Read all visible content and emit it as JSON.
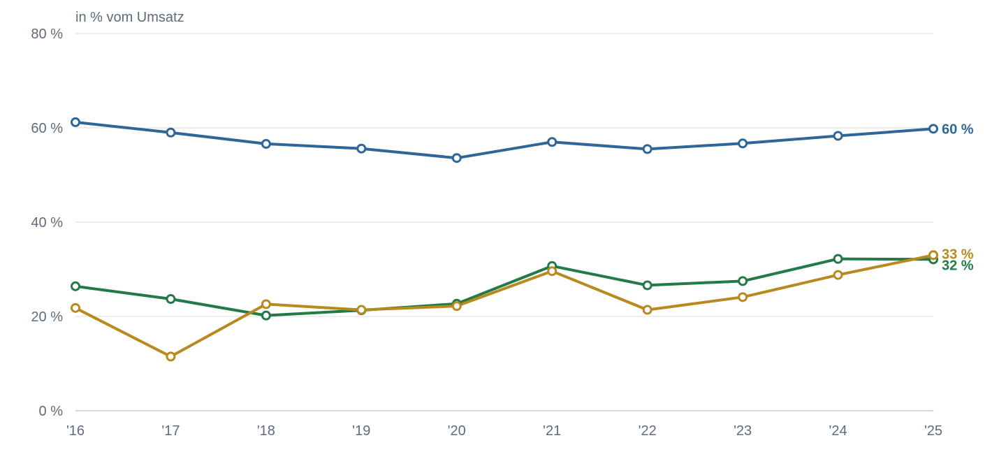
{
  "chart_data": {
    "type": "line",
    "title": "",
    "ylabel": "in % vom Umsatz",
    "xlabel": "",
    "x": [
      "'16",
      "'17",
      "'18",
      "'19",
      "'20",
      "'21",
      "'22",
      "'23",
      "'24",
      "'25"
    ],
    "ylim": [
      0,
      80
    ],
    "yticks": [
      {
        "value": 0,
        "label": "0 %"
      },
      {
        "value": 20,
        "label": "20 %"
      },
      {
        "value": 40,
        "label": "40 %"
      },
      {
        "value": 60,
        "label": "60 %"
      },
      {
        "value": 80,
        "label": "80 %"
      }
    ],
    "grid": true,
    "legend": "none",
    "series": [
      {
        "color": "#2f6699",
        "values": [
          61.2,
          59.0,
          56.6,
          55.6,
          53.6,
          57.0,
          55.5,
          56.7,
          58.3,
          59.8
        ],
        "end_label": "60 %"
      },
      {
        "color": "#217a47",
        "values": [
          26.4,
          23.7,
          20.2,
          21.3,
          22.7,
          30.7,
          26.6,
          27.5,
          32.2,
          32.1
        ],
        "end_label": "32 %"
      },
      {
        "color": "#b88a1e",
        "values": [
          21.8,
          11.5,
          22.6,
          21.4,
          22.2,
          29.6,
          21.4,
          24.1,
          28.8,
          33.0
        ],
        "end_label": "33 %"
      }
    ]
  }
}
